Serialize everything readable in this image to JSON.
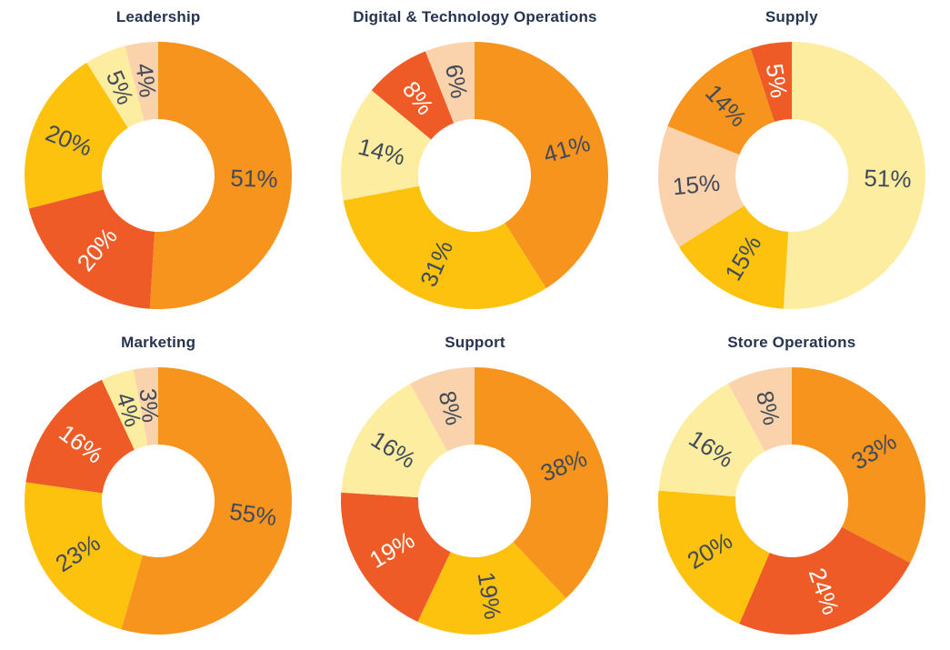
{
  "page": {
    "background": "#FFFFFF"
  },
  "palette": {
    "orange": "#F7941E",
    "red_orange": "#EE5B27",
    "yellow": "#FDC20E",
    "pale_yellow": "#FDEDA0",
    "peach": "#FAD3AC"
  },
  "text_colors": {
    "title": "#263450",
    "label_dark": "#414A59",
    "label_light": "#FFFFFF"
  },
  "chart_data": [
    {
      "type": "pie",
      "subtype": "donut",
      "title": "Leadership",
      "start_angle_deg": 0,
      "direction": "clockwise",
      "inner_radius_ratio": 0.42,
      "label_position": "inside-radial",
      "slices": [
        {
          "label": "51%",
          "value": 51,
          "color_key": "orange"
        },
        {
          "label": "20%",
          "value": 20,
          "color_key": "red_orange"
        },
        {
          "label": "20%",
          "value": 20,
          "color_key": "yellow"
        },
        {
          "label": "5%",
          "value": 5,
          "color_key": "pale_yellow"
        },
        {
          "label": "4%",
          "value": 4,
          "color_key": "peach"
        }
      ]
    },
    {
      "type": "pie",
      "subtype": "donut",
      "title": "Digital & Technology Operations",
      "start_angle_deg": 0,
      "direction": "clockwise",
      "inner_radius_ratio": 0.42,
      "label_position": "inside-radial",
      "slices": [
        {
          "label": "41%",
          "value": 41,
          "color_key": "orange"
        },
        {
          "label": "31%",
          "value": 31,
          "color_key": "yellow"
        },
        {
          "label": "14%",
          "value": 14,
          "color_key": "pale_yellow"
        },
        {
          "label": "8%",
          "value": 8,
          "color_key": "red_orange"
        },
        {
          "label": "6%",
          "value": 6,
          "color_key": "peach"
        }
      ]
    },
    {
      "type": "pie",
      "subtype": "donut",
      "title": "Supply",
      "start_angle_deg": 0,
      "direction": "clockwise",
      "inner_radius_ratio": 0.42,
      "label_position": "inside-radial",
      "slices": [
        {
          "label": "51%",
          "value": 51,
          "color_key": "pale_yellow"
        },
        {
          "label": "15%",
          "value": 15,
          "color_key": "yellow"
        },
        {
          "label": "15%",
          "value": 15,
          "color_key": "peach"
        },
        {
          "label": "14%",
          "value": 14,
          "color_key": "orange"
        },
        {
          "label": "5%",
          "value": 5,
          "color_key": "red_orange"
        }
      ]
    },
    {
      "type": "pie",
      "subtype": "donut",
      "title": "Marketing",
      "start_angle_deg": 0,
      "direction": "clockwise",
      "inner_radius_ratio": 0.42,
      "label_position": "inside-radial",
      "slices": [
        {
          "label": "55%",
          "value": 55,
          "color_key": "orange"
        },
        {
          "label": "23%",
          "value": 23,
          "color_key": "yellow"
        },
        {
          "label": "16%",
          "value": 16,
          "color_key": "red_orange"
        },
        {
          "label": "4%",
          "value": 4,
          "color_key": "pale_yellow"
        },
        {
          "label": "3%",
          "value": 3,
          "color_key": "peach"
        }
      ]
    },
    {
      "type": "pie",
      "subtype": "donut",
      "title": "Support",
      "start_angle_deg": 0,
      "direction": "clockwise",
      "inner_radius_ratio": 0.42,
      "label_position": "inside-radial",
      "slices": [
        {
          "label": "38%",
          "value": 38,
          "color_key": "orange"
        },
        {
          "label": "19%",
          "value": 19,
          "color_key": "yellow"
        },
        {
          "label": "19%",
          "value": 19,
          "color_key": "red_orange"
        },
        {
          "label": "16%",
          "value": 16,
          "color_key": "pale_yellow"
        },
        {
          "label": "8%",
          "value": 8,
          "color_key": "peach"
        }
      ]
    },
    {
      "type": "pie",
      "subtype": "donut",
      "title": "Store Operations",
      "start_angle_deg": 0,
      "direction": "clockwise",
      "inner_radius_ratio": 0.42,
      "label_position": "inside-radial",
      "slices": [
        {
          "label": "33%",
          "value": 33,
          "color_key": "orange"
        },
        {
          "label": "24%",
          "value": 24,
          "color_key": "red_orange"
        },
        {
          "label": "20%",
          "value": 20,
          "color_key": "yellow"
        },
        {
          "label": "16%",
          "value": 16,
          "color_key": "pale_yellow"
        },
        {
          "label": "8%",
          "value": 8,
          "color_key": "peach"
        }
      ]
    }
  ]
}
